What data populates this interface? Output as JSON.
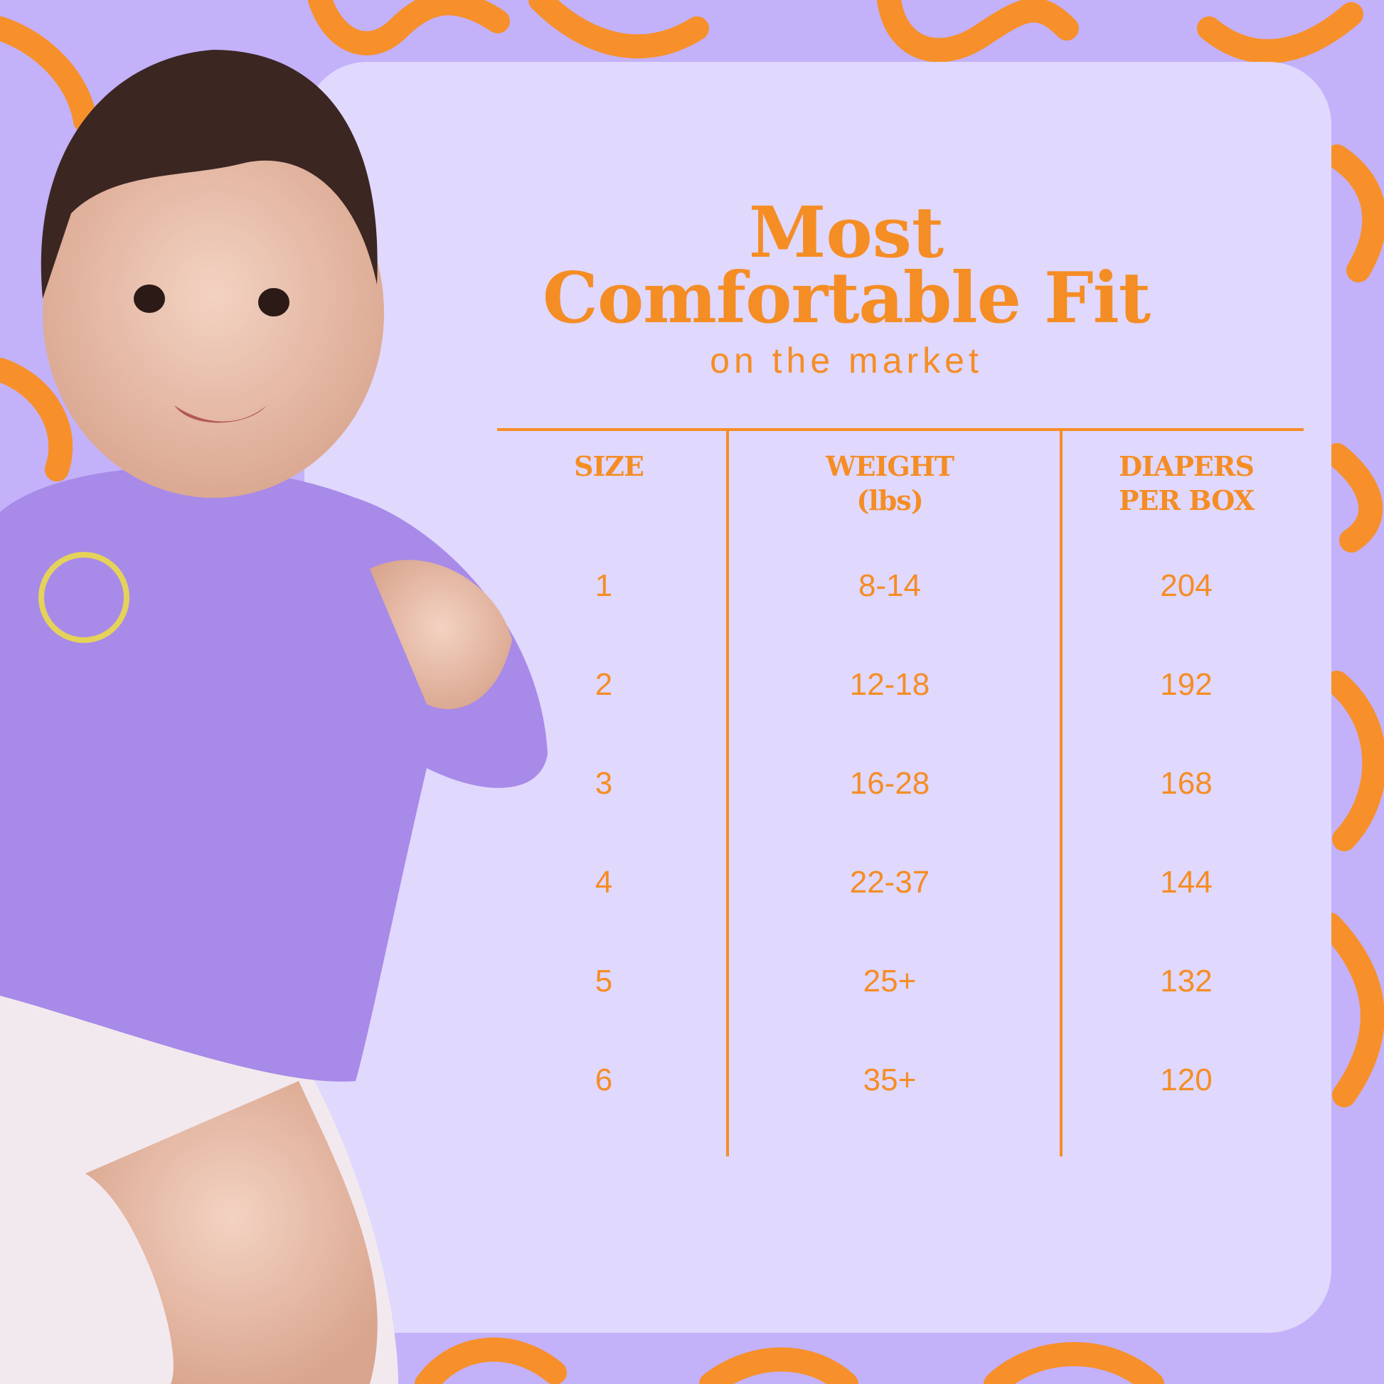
{
  "colors": {
    "background": "#c3b1fa",
    "card": "#e0d8fd",
    "accent": "#f58d25"
  },
  "title": {
    "line1": "Most",
    "line2": "Comfortable Fit",
    "subtitle": "on the market"
  },
  "table": {
    "headers": [
      {
        "line1": "SIZE",
        "line2": ""
      },
      {
        "line1": "WEIGHT",
        "line2": "(lbs)"
      },
      {
        "line1": "DIAPERS",
        "line2": "PER BOX"
      }
    ],
    "rows": [
      {
        "size": "1",
        "weight": "8-14",
        "per_box": "204"
      },
      {
        "size": "2",
        "weight": "12-18",
        "per_box": "192"
      },
      {
        "size": "3",
        "weight": "16-28",
        "per_box": "168"
      },
      {
        "size": "4",
        "weight": "22-37",
        "per_box": "144"
      },
      {
        "size": "5",
        "weight": "25+",
        "per_box": "132"
      },
      {
        "size": "6",
        "weight": "35+",
        "per_box": "120"
      }
    ]
  },
  "image": {
    "subject": "baby-in-purple-sweatshirt-photo"
  }
}
